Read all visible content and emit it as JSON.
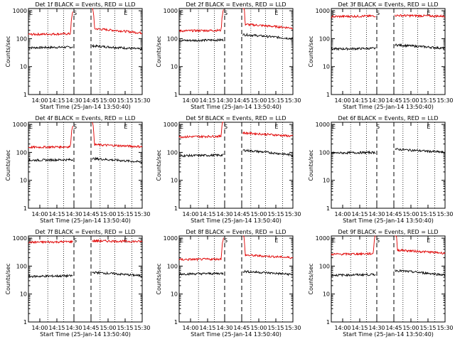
{
  "figure": {
    "ylabel": "Counts/sec",
    "xlabel": "Start Time (25-Jan-14 13:50:40)",
    "x_ticks": [
      "14:00",
      "14:15",
      "14:30",
      "14:45",
      "15:00",
      "15:15",
      "15:30"
    ],
    "y_ticks": [
      "1",
      "10",
      "100",
      "1000"
    ],
    "marker_S": "S",
    "marker_E": "E",
    "series_names": [
      "Events",
      "LLD"
    ],
    "colors": {
      "events": "#000000",
      "lld": "#e00000"
    }
  },
  "chart_data": [
    {
      "type": "line",
      "title": "Det 1f BLACK = Events, RED = LLD",
      "ylim": [
        1,
        1200
      ],
      "yscale": "log",
      "xlim": [
        "13:50",
        "15:30"
      ],
      "series": [
        {
          "name": "Events",
          "values": {
            "before": 50,
            "after": 55,
            "end": 42
          }
        },
        {
          "name": "LLD",
          "values": {
            "before": 150,
            "after": 230,
            "end": 160
          }
        }
      ]
    },
    {
      "type": "line",
      "title": "Det 2f BLACK = Events, RED = LLD",
      "ylim": [
        1,
        1200
      ],
      "yscale": "log",
      "xlim": [
        "13:50",
        "15:30"
      ],
      "series": [
        {
          "name": "Events",
          "values": {
            "before": 90,
            "after": 140,
            "end": 100
          }
        },
        {
          "name": "LLD",
          "values": {
            "before": 200,
            "after": 330,
            "end": 240
          }
        }
      ]
    },
    {
      "type": "line",
      "title": "Det 3f BLACK = Events, RED = LLD",
      "ylim": [
        1,
        1200
      ],
      "yscale": "log",
      "xlim": [
        "13:50",
        "15:30"
      ],
      "series": [
        {
          "name": "Events",
          "values": {
            "before": 45,
            "after": 60,
            "end": 45
          }
        },
        {
          "name": "LLD",
          "values": {
            "before": 650,
            "after": 680,
            "end": 640
          }
        }
      ]
    },
    {
      "type": "line",
      "title": "Det 4f BLACK = Events, RED = LLD",
      "ylim": [
        1,
        1200
      ],
      "yscale": "log",
      "xlim": [
        "13:50",
        "15:30"
      ],
      "series": [
        {
          "name": "Events",
          "values": {
            "before": 55,
            "after": 60,
            "end": 45
          }
        },
        {
          "name": "LLD",
          "values": {
            "before": 160,
            "after": 190,
            "end": 160
          }
        }
      ]
    },
    {
      "type": "line",
      "title": "Det 5f BLACK = Events, RED = LLD",
      "ylim": [
        1,
        1200
      ],
      "yscale": "log",
      "xlim": [
        "13:50",
        "15:30"
      ],
      "series": [
        {
          "name": "Events",
          "values": {
            "before": 80,
            "after": 120,
            "end": 80
          }
        },
        {
          "name": "LLD",
          "values": {
            "before": 380,
            "after": 500,
            "end": 380
          }
        }
      ]
    },
    {
      "type": "line",
      "title": "Det 6f BLACK = Events, RED = LLD",
      "ylim": [
        1,
        1200
      ],
      "yscale": "log",
      "xlim": [
        "13:50",
        "15:30"
      ],
      "series": [
        {
          "name": "Events",
          "values": {
            "before": 100,
            "after": 130,
            "end": 100
          }
        }
      ]
    },
    {
      "type": "line",
      "title": "Det 7f BLACK = Events, RED = LLD",
      "ylim": [
        1,
        1200
      ],
      "yscale": "log",
      "xlim": [
        "13:50",
        "15:30"
      ],
      "series": [
        {
          "name": "Events",
          "values": {
            "before": 45,
            "after": 60,
            "end": 45
          }
        },
        {
          "name": "LLD",
          "values": {
            "before": 750,
            "after": 800,
            "end": 760
          }
        }
      ]
    },
    {
      "type": "line",
      "title": "Det 8f BLACK = Events, RED = LLD",
      "ylim": [
        1,
        1200
      ],
      "yscale": "log",
      "xlim": [
        "13:50",
        "15:30"
      ],
      "series": [
        {
          "name": "Events",
          "values": {
            "before": 55,
            "after": 65,
            "end": 50
          }
        },
        {
          "name": "LLD",
          "values": {
            "before": 180,
            "after": 250,
            "end": 200
          }
        }
      ]
    },
    {
      "type": "line",
      "title": "Det 9f BLACK = Events, RED = LLD",
      "ylim": [
        1,
        1200
      ],
      "yscale": "log",
      "xlim": [
        "13:50",
        "15:30"
      ],
      "series": [
        {
          "name": "Events",
          "values": {
            "before": 50,
            "after": 70,
            "end": 48
          }
        },
        {
          "name": "LLD",
          "values": {
            "before": 280,
            "after": 380,
            "end": 290
          }
        }
      ]
    }
  ]
}
